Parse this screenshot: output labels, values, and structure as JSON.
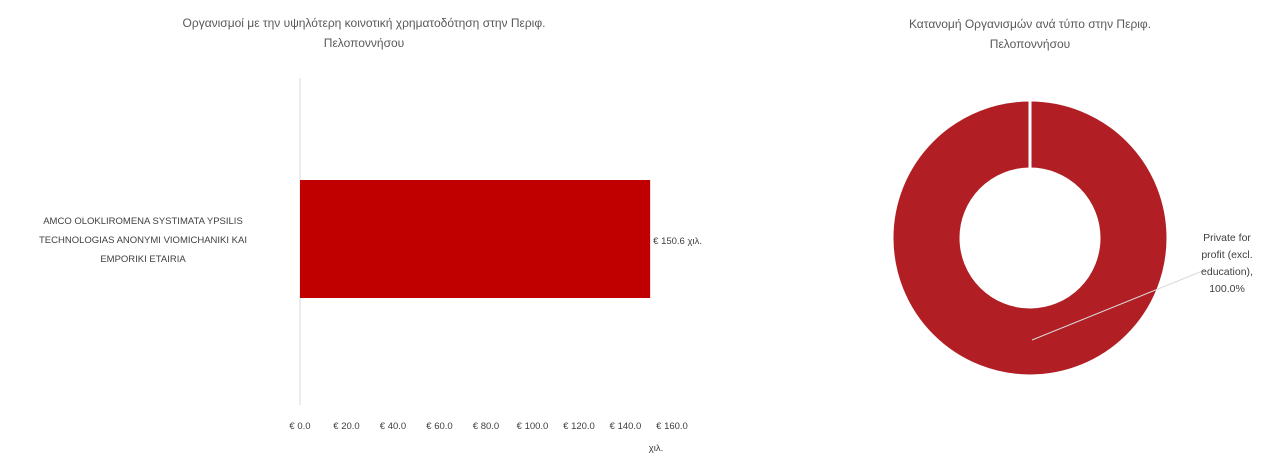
{
  "charts": {
    "bar_chart": {
      "title_line1": "Οργανισμοί με την υψηλότερη κοινοτική  χρηματοδότηση στην Περιφ.",
      "title_line2": "Πελοποννήσου",
      "category_label_line1": "AMCO OLOKLIROMENA SYSTIMATA YPSILIS",
      "category_label_line2": "TECHNOLOGIAS ANONYMI VIOMICHANIKI KAI",
      "category_label_line3": "EMPORIKI ETAIRIA",
      "data_label": "€ 150.6 χιλ.",
      "tick_labels": [
        "€ 0.0",
        "€ 20.0",
        "€ 40.0",
        "€ 60.0",
        "€ 80.0",
        "€ 100.0",
        "€ 120.0",
        "€ 140.0",
        "€ 160.0"
      ],
      "axis_unit": "χιλ.",
      "bar_color": "#c00000"
    },
    "donut_chart": {
      "title_line1": "Κατανομή Οργανισμών ανά τύπο στην Περιφ.",
      "title_line2": "Πελοποννήσου",
      "label_line1": "Private for",
      "label_line2": "profit (excl.",
      "label_line3": "education),",
      "label_line4": "100.0%",
      "slice_color": "#b11f24"
    }
  },
  "chart_data": [
    {
      "type": "bar",
      "orientation": "horizontal",
      "title": "Οργανισμοί με την υψηλότερη κοινοτική  χρηματοδότηση στην Περιφ. Πελοποννήσου",
      "categories": [
        "AMCO OLOKLIROMENA SYSTIMATA YPSILIS TECHNOLOGIAS ANONYMI VIOMICHANIKI KAI EMPORIKI ETAIRIA"
      ],
      "values": [
        150.6
      ],
      "value_unit": "€ χιλ.",
      "xlim": [
        0,
        160
      ],
      "x_ticks": [
        0,
        20,
        40,
        60,
        80,
        100,
        120,
        140,
        160
      ],
      "grid": false,
      "legend": "none"
    },
    {
      "type": "pie",
      "variant": "donut",
      "title": "Κατανομή Οργανισμών ανά τύπο στην Περιφ. Πελοποννήσου",
      "categories": [
        "Private for profit (excl. education)"
      ],
      "values": [
        100.0
      ],
      "value_unit": "%",
      "legend": "none"
    }
  ]
}
